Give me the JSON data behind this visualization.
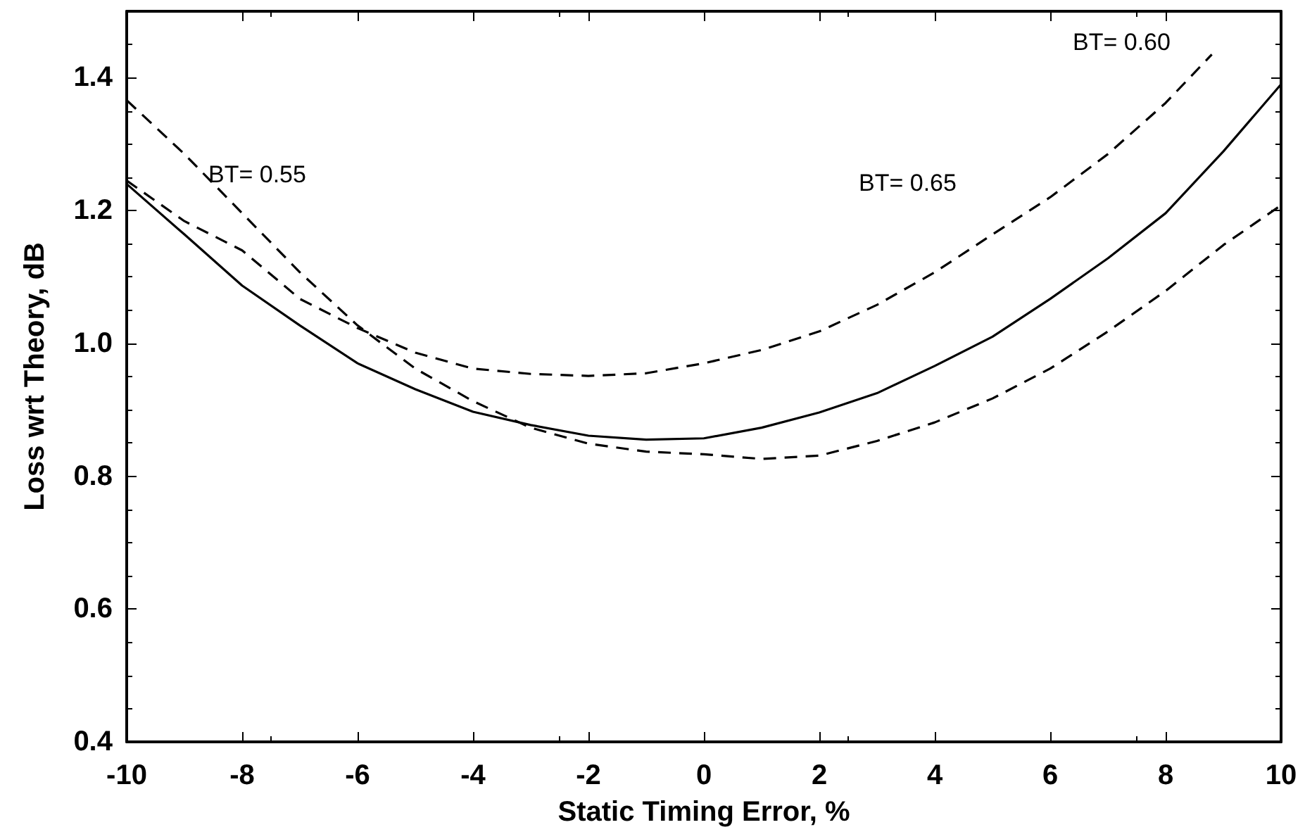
{
  "chart_data": {
    "type": "line",
    "xlabel": "Static Timing Error, %",
    "ylabel": "Loss wrt Theory, dB",
    "x": [
      -10,
      -9,
      -8,
      -7,
      -6,
      -5,
      -4,
      -3,
      -2,
      -1,
      0,
      1,
      2,
      3,
      4,
      5,
      6,
      7,
      8,
      9,
      10
    ],
    "series": [
      {
        "color": "#000000",
        "line_style": "solid",
        "values": [
          1.24,
          1.164,
          1.087,
          1.027,
          0.97,
          0.931,
          0.897,
          0.877,
          0.861,
          0.855,
          0.857,
          0.873,
          0.896,
          0.925,
          0.966,
          1.01,
          1.067,
          1.128,
          1.196,
          1.289,
          1.39
        ]
      },
      {
        "color": "#000000",
        "line_style": "dashed",
        "values": [
          1.366,
          1.285,
          1.196,
          1.107,
          1.027,
          0.962,
          0.913,
          0.873,
          0.849,
          0.837,
          0.833,
          0.826,
          0.831,
          0.853,
          0.881,
          0.917,
          0.962,
          1.018,
          1.079,
          1.148,
          1.208
        ]
      },
      {
        "color": "#000000",
        "line_style": "dashed",
        "x": [
          -10,
          -9,
          -8,
          -7,
          -6,
          -5,
          -4,
          -3,
          -2,
          -1,
          0,
          1,
          2,
          3,
          4,
          5,
          6,
          7,
          8,
          8.8
        ],
        "values": [
          1.245,
          1.184,
          1.14,
          1.067,
          1.023,
          0.986,
          0.962,
          0.954,
          0.951,
          0.955,
          0.97,
          0.99,
          1.018,
          1.058,
          1.107,
          1.164,
          1.22,
          1.285,
          1.362,
          1.435
        ]
      }
    ],
    "annotations": [
      "BT= 0.55",
      "BT= 0.65",
      "BT= 0.60"
    ],
    "xlim": [
      -10,
      10
    ],
    "xticks": [
      -10,
      -8,
      -6,
      -4,
      -2,
      0,
      2,
      4,
      6,
      8,
      10
    ],
    "ylim": [
      0.4,
      1.5
    ],
    "yticks": [
      {
        "value": 0.4,
        "label": "0.4"
      },
      {
        "value": 0.6,
        "label": "0.6"
      },
      {
        "value": 0.8,
        "label": "0.8"
      },
      {
        "value": 1.0,
        "label": "1.0"
      },
      {
        "value": 1.2,
        "label": "1.2"
      },
      {
        "value": 1.4,
        "label": "1.4"
      }
    ],
    "grid": false,
    "marker": "none"
  }
}
